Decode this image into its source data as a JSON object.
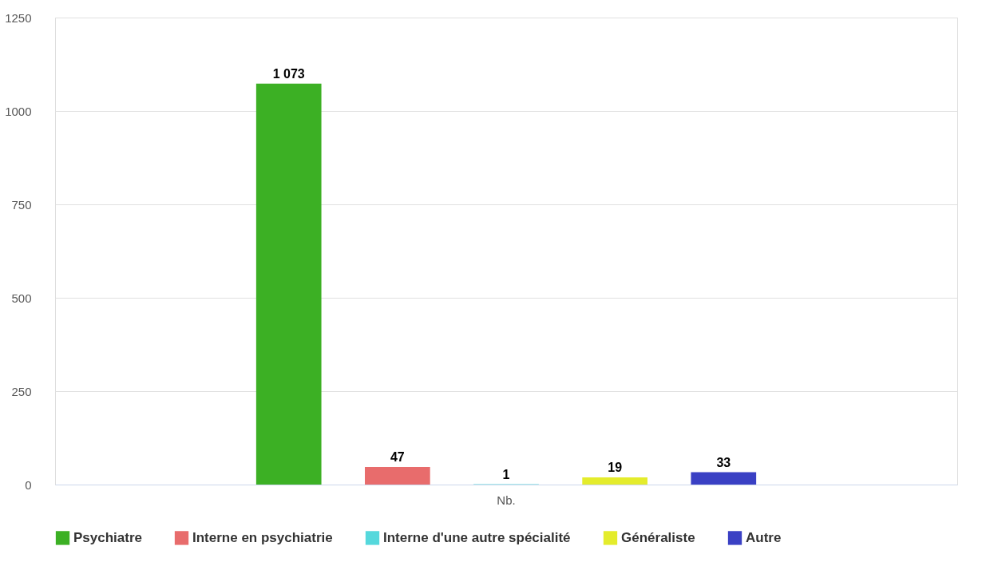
{
  "chart_data": {
    "type": "bar",
    "categories": [
      "Nb."
    ],
    "series": [
      {
        "name": "Psychiatre",
        "color": "#3cb024",
        "values": [
          1073
        ],
        "value_labels": [
          "1 073"
        ]
      },
      {
        "name": "Interne en psychiatrie",
        "color": "#e86c6c",
        "values": [
          47
        ],
        "value_labels": [
          "47"
        ]
      },
      {
        "name": "Interne d'une autre spécialité",
        "color": "#55d8dc",
        "values": [
          1
        ],
        "value_labels": [
          "1"
        ]
      },
      {
        "name": "Généraliste",
        "color": "#e4ec2c",
        "values": [
          19
        ],
        "value_labels": [
          "19"
        ]
      },
      {
        "name": "Autre",
        "color": "#3a40c4",
        "values": [
          33
        ],
        "value_labels": [
          "33"
        ]
      }
    ],
    "ylim": [
      0,
      1250
    ],
    "yticks": [
      0,
      250,
      500,
      750,
      1000,
      1250
    ],
    "grid": "y",
    "legend": "bottom"
  }
}
